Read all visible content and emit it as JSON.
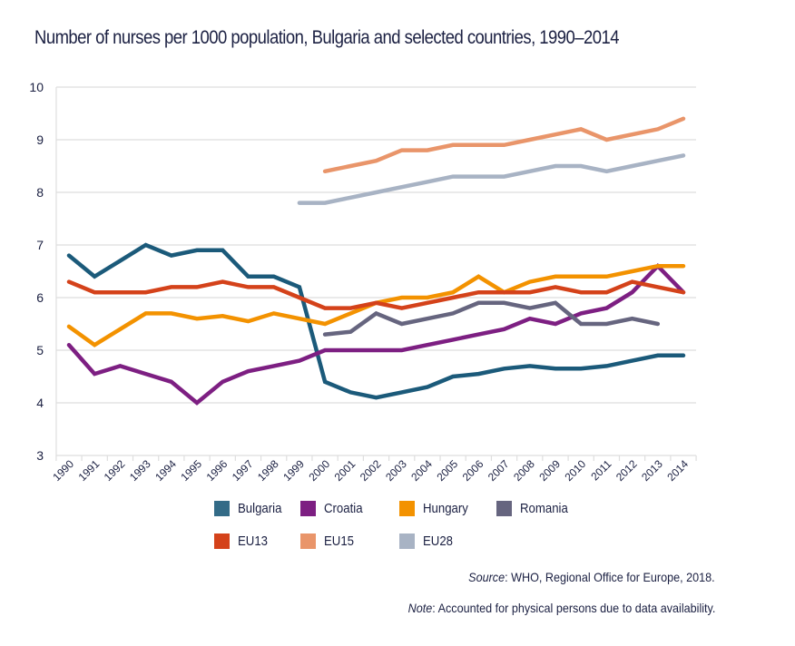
{
  "chart_data": {
    "type": "line",
    "title": "Number of nurses per 1000 population, Bulgaria and selected countries, 1990–2014",
    "xlabel": "",
    "ylabel": "",
    "ylim": [
      3,
      10
    ],
    "yticks": [
      "3",
      "4",
      "5",
      "6",
      "7",
      "8",
      "9",
      "10"
    ],
    "grid": true,
    "legend_position": "bottom",
    "categories": [
      "1990",
      "1991",
      "1992",
      "1993",
      "1994",
      "1995",
      "1996",
      "1997",
      "1998",
      "1999",
      "2000",
      "2001",
      "2002",
      "2003",
      "2004",
      "2005",
      "2006",
      "2007",
      "2008",
      "2009",
      "2010",
      "2011",
      "2012",
      "2013",
      "2014"
    ],
    "series": [
      {
        "name": "Bulgaria",
        "color": "#1b5a7a",
        "legend_color": "#336b87",
        "values": [
          6.8,
          6.4,
          6.7,
          7.0,
          6.8,
          6.9,
          6.9,
          6.4,
          6.4,
          6.2,
          4.4,
          4.2,
          4.1,
          4.2,
          4.3,
          4.5,
          4.55,
          4.65,
          4.7,
          4.65,
          4.65,
          4.7,
          4.8,
          4.9,
          4.9
        ]
      },
      {
        "name": "Croatia",
        "color": "#7d1f82",
        "legend_color": "#7d1f82",
        "values": [
          5.1,
          4.55,
          4.7,
          4.55,
          4.4,
          4.0,
          4.4,
          4.6,
          4.7,
          4.8,
          5.0,
          5.0,
          5.0,
          5.0,
          5.1,
          5.2,
          5.3,
          5.4,
          5.6,
          5.5,
          5.7,
          5.8,
          6.1,
          6.6,
          6.1
        ]
      },
      {
        "name": "Hungary",
        "color": "#f39200",
        "legend_color": "#f39200",
        "values": [
          5.45,
          5.1,
          5.4,
          5.7,
          5.7,
          5.6,
          5.65,
          5.55,
          5.7,
          5.6,
          5.5,
          5.7,
          5.9,
          6.0,
          6.0,
          6.1,
          6.4,
          6.1,
          6.3,
          6.4,
          6.4,
          6.4,
          6.5,
          6.6,
          6.6
        ]
      },
      {
        "name": "Romania",
        "color": "#66657f",
        "legend_color": "#66657f",
        "values": [
          null,
          null,
          null,
          null,
          null,
          null,
          null,
          null,
          null,
          null,
          5.3,
          5.35,
          5.7,
          5.5,
          5.6,
          5.7,
          5.9,
          5.9,
          5.8,
          5.9,
          5.5,
          5.5,
          5.6,
          5.5,
          null
        ]
      },
      {
        "name": "EU13",
        "color": "#d4421a",
        "legend_color": "#d4421a",
        "values": [
          6.3,
          6.1,
          6.1,
          6.1,
          6.2,
          6.2,
          6.3,
          6.2,
          6.2,
          6.0,
          5.8,
          5.8,
          5.9,
          5.8,
          5.9,
          6.0,
          6.1,
          6.1,
          6.1,
          6.2,
          6.1,
          6.1,
          6.3,
          6.2,
          6.1
        ]
      },
      {
        "name": "EU15",
        "color": "#e9956a",
        "legend_color": "#e9956a",
        "values": [
          null,
          null,
          null,
          null,
          null,
          null,
          null,
          null,
          null,
          null,
          8.4,
          8.5,
          8.6,
          8.8,
          8.8,
          8.9,
          8.9,
          8.9,
          9.0,
          9.1,
          9.2,
          9.0,
          9.1,
          9.2,
          9.4
        ]
      },
      {
        "name": "EU28",
        "color": "#a8b3c4",
        "legend_color": "#a8b3c4",
        "values": [
          null,
          null,
          null,
          null,
          null,
          null,
          null,
          null,
          null,
          7.8,
          7.8,
          7.9,
          8.0,
          8.1,
          8.2,
          8.3,
          8.3,
          8.3,
          8.4,
          8.5,
          8.5,
          8.4,
          8.5,
          8.6,
          8.7
        ]
      }
    ]
  },
  "notes": {
    "source_label": "Source",
    "source_text": ": WHO, Regional Office for Europe, 2018.",
    "note_label": "Note",
    "note_text": ": Accounted for physical persons due to data availability."
  }
}
